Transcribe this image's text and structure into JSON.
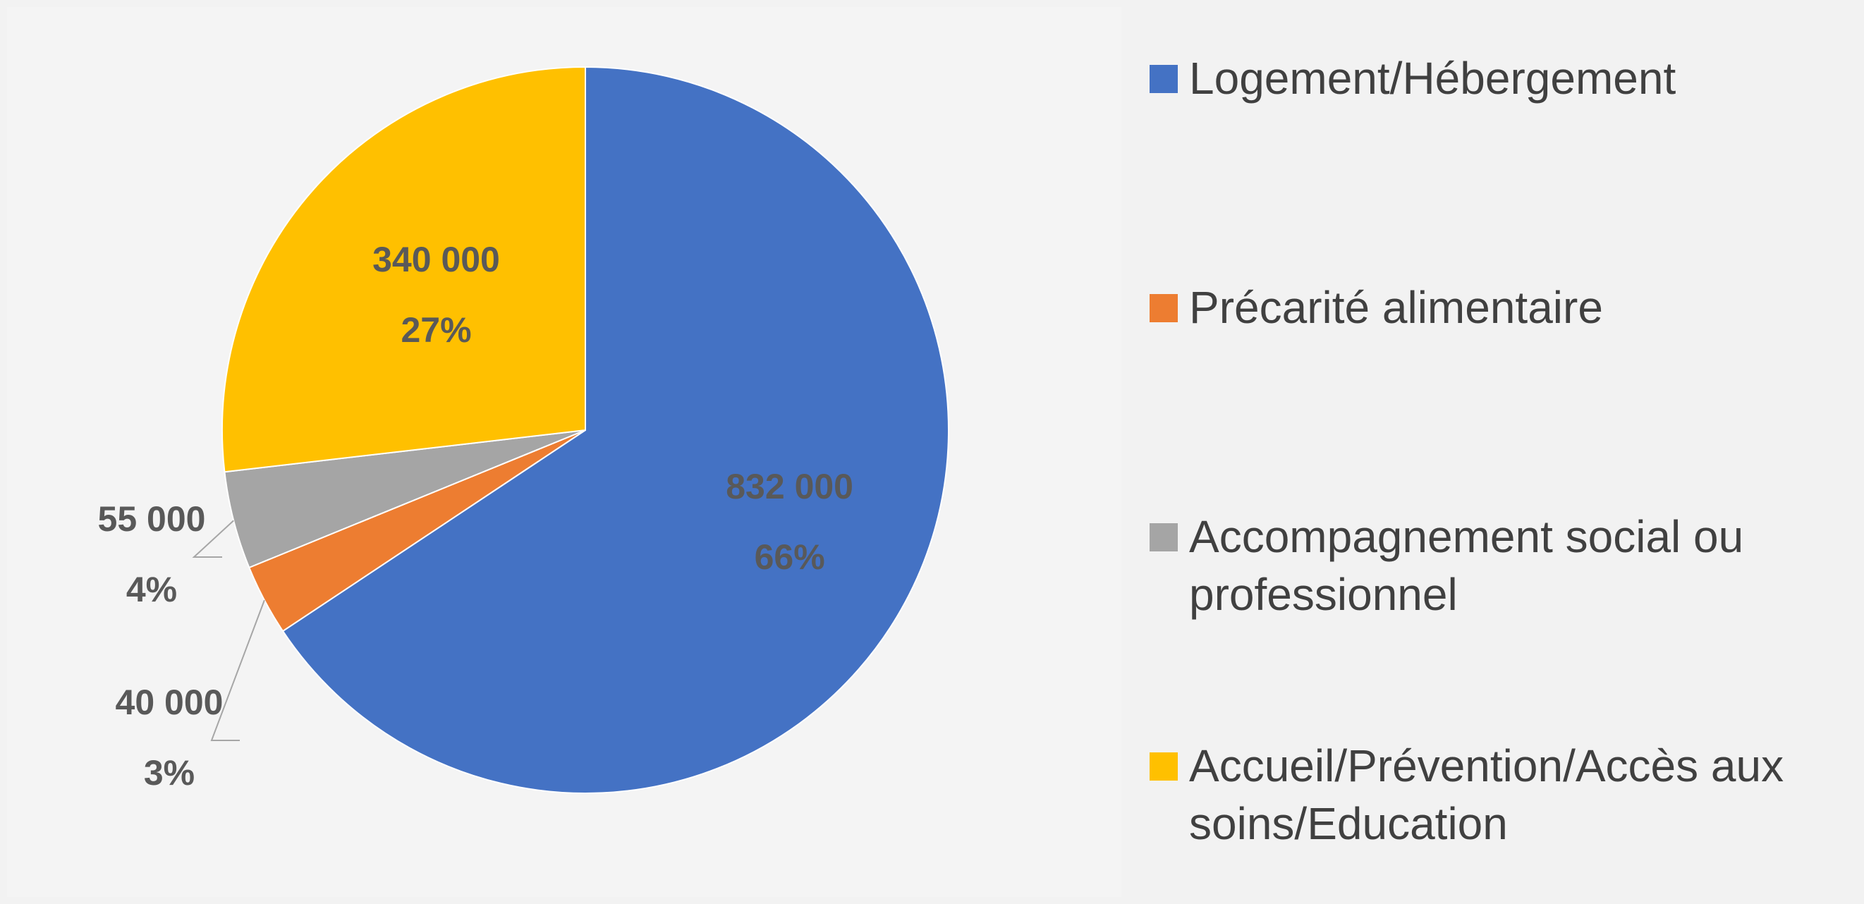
{
  "chart_data": {
    "type": "pie",
    "categories": [
      "Logement/Hébergement",
      "Précarité alimentaire",
      "Accompagnement social ou professionnel",
      "Accueil/Prévention/Accès aux soins/Education"
    ],
    "values": [
      832000,
      40000,
      55000,
      340000
    ],
    "value_labels": [
      "832 000",
      "40 000",
      "55 000",
      "340 000"
    ],
    "percent_labels": [
      "66%",
      "3%",
      "4%",
      "27%"
    ],
    "colors": [
      "#4472c4",
      "#ed7d31",
      "#a5a5a5",
      "#ffc000"
    ],
    "legend": "right"
  }
}
